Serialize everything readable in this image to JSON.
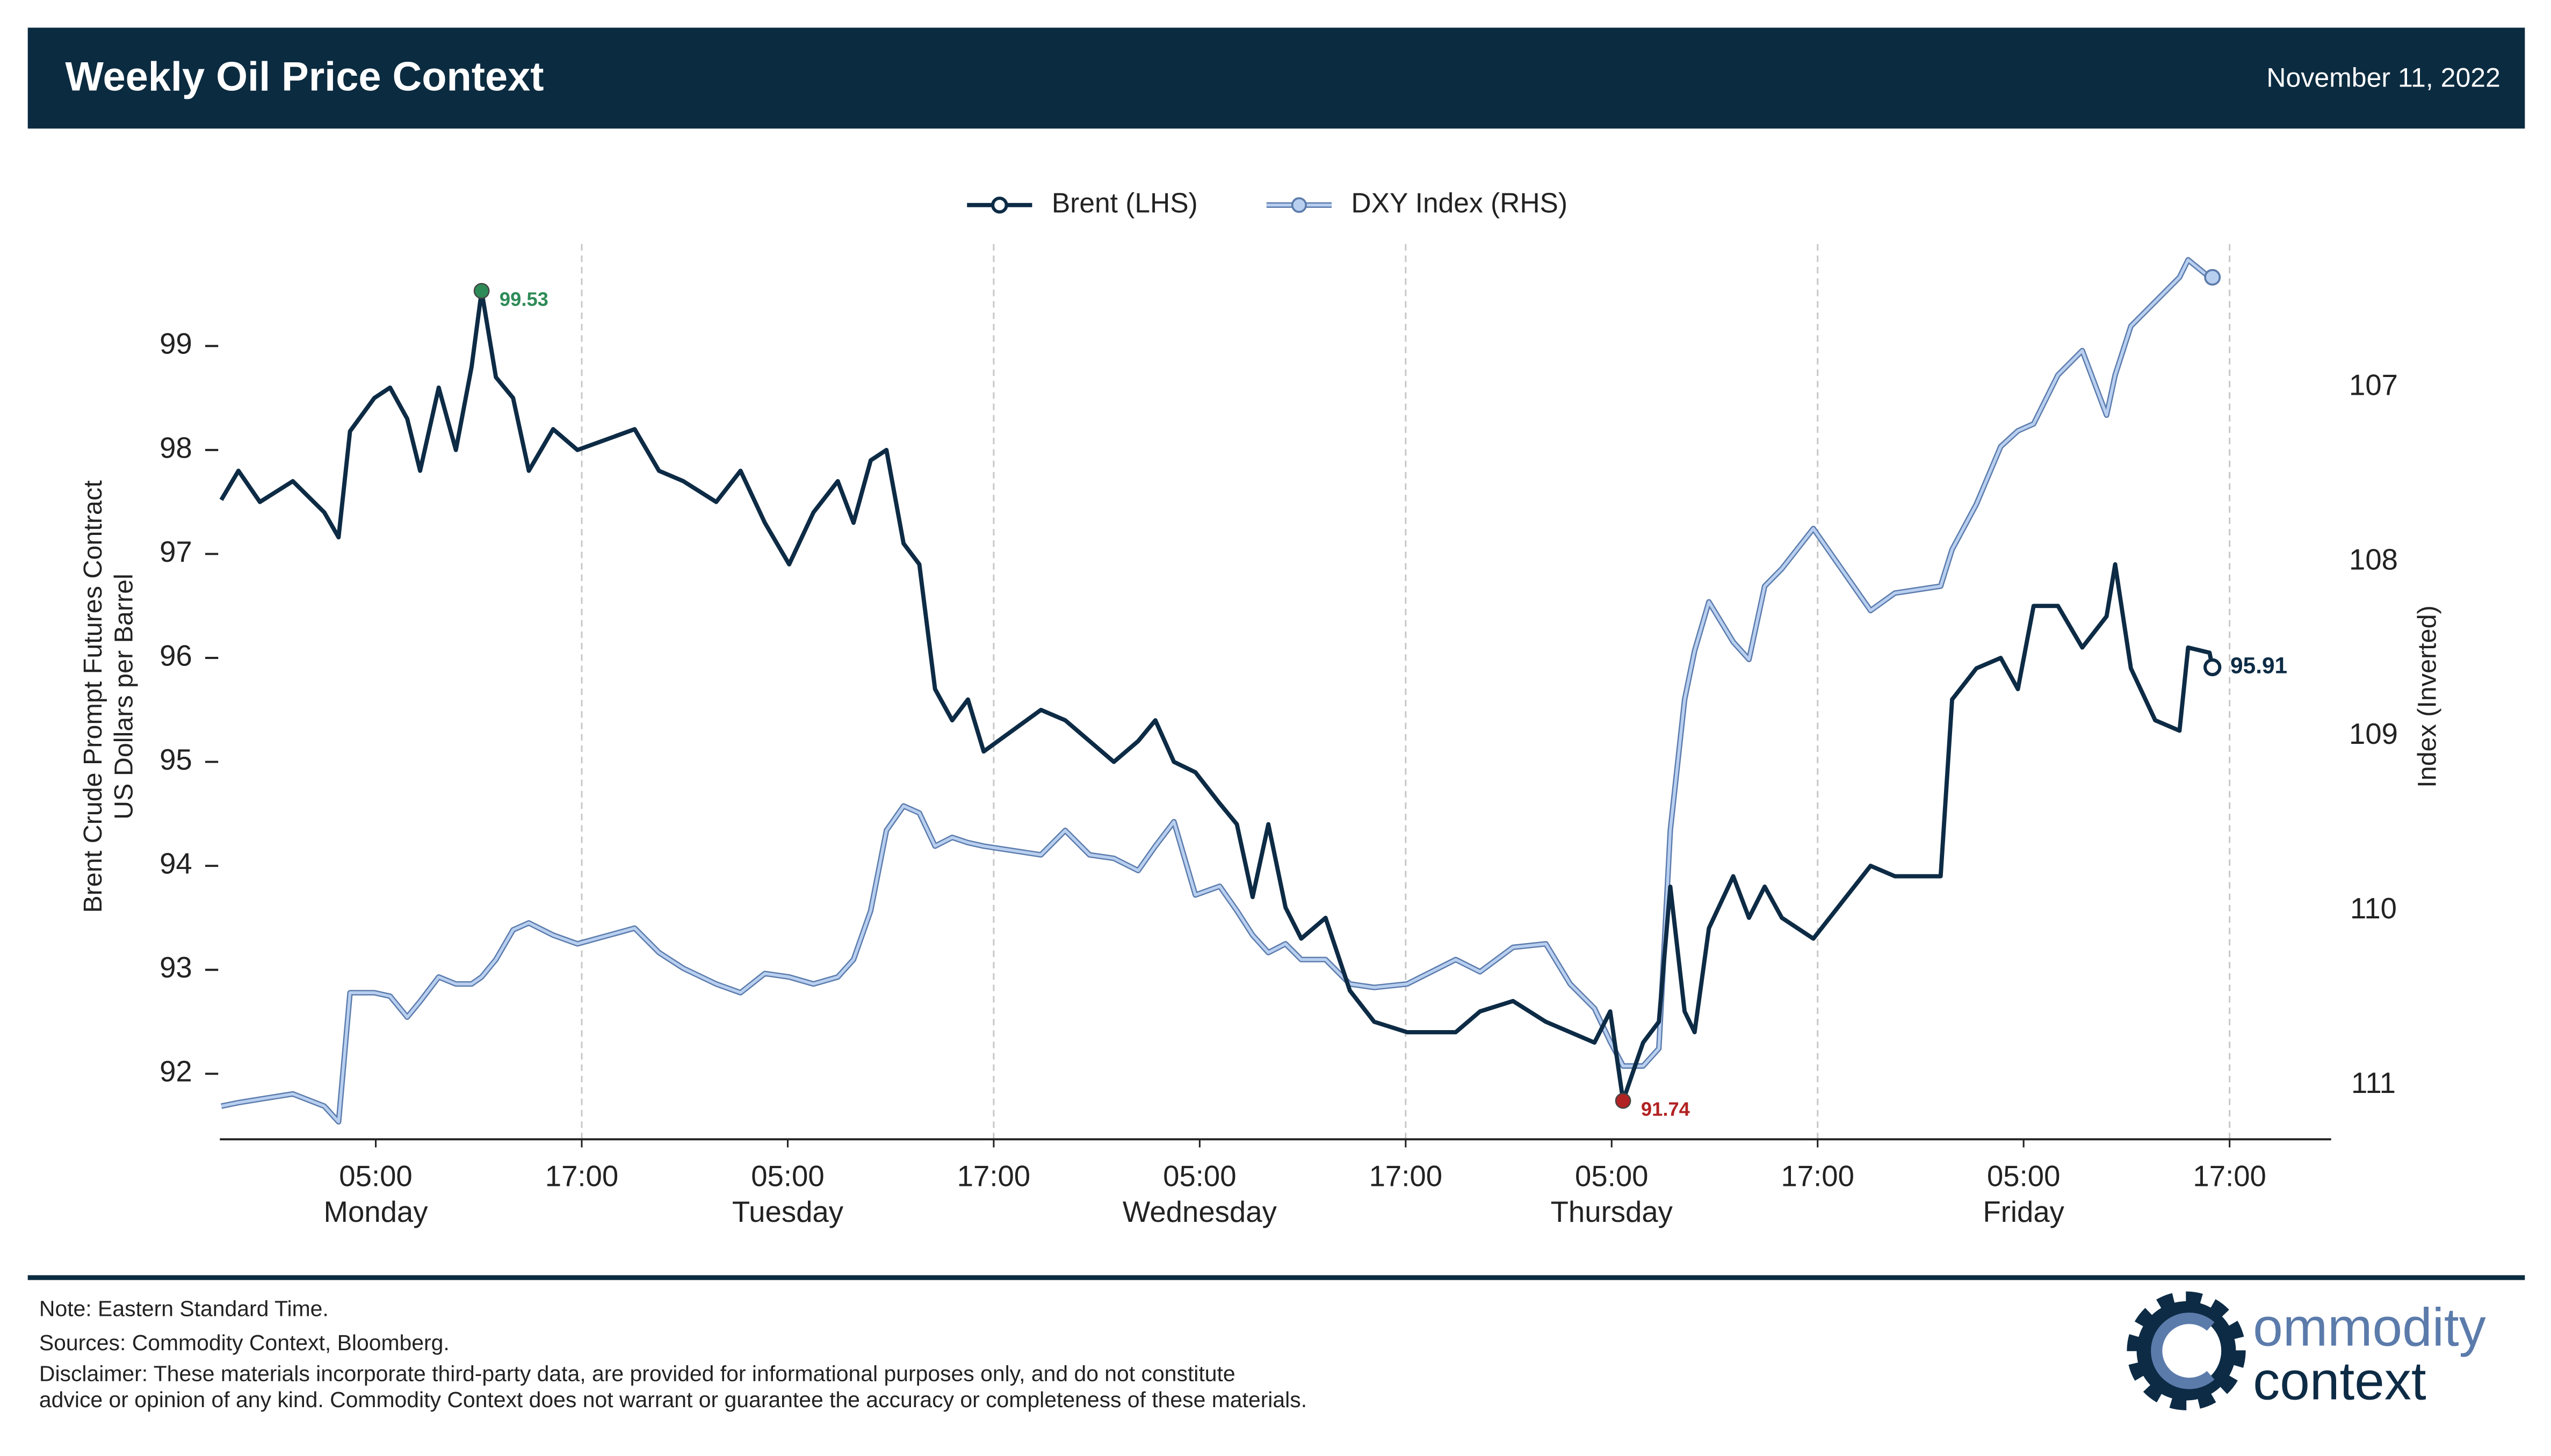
{
  "header": {
    "title": "Weekly Oil Price Context",
    "date": "November 11, 2022"
  },
  "chart_data": {
    "type": "line",
    "legend": "upper center",
    "ylabel": [
      "Brent Crude Prompt Futures Contract",
      "US Dollars per Barrel"
    ],
    "y2label": "Index (Inverted)",
    "xlim": [
      "Sunday 19:55",
      "Friday 22:55"
    ],
    "xticks": [
      {
        "value": "Monday 05:00",
        "label": "05:00"
      },
      {
        "value": "Monday 17:00",
        "label": "17:00",
        "grid": true
      },
      {
        "value": "Tuesday 05:00",
        "label": "05:00"
      },
      {
        "value": "Tuesday 17:00",
        "label": "17:00",
        "grid": true
      },
      {
        "value": "Wednesday 05:00",
        "label": "05:00"
      },
      {
        "value": "Wednesday 17:00",
        "label": "17:00",
        "grid": true
      },
      {
        "value": "Thursday 05:00",
        "label": "05:00"
      },
      {
        "value": "Thursday 17:00",
        "label": "17:00",
        "grid": true
      },
      {
        "value": "Friday 05:00",
        "label": "05:00"
      },
      {
        "value": "Friday 17:00",
        "label": "17:00",
        "grid": true
      }
    ],
    "xtick_days": [
      {
        "value": "Monday 05:00",
        "label": "Monday"
      },
      {
        "value": "Tuesday 05:00",
        "label": "Tuesday"
      },
      {
        "value": "Wednesday 05:00",
        "label": "Wednesday"
      },
      {
        "value": "Thursday 05:00",
        "label": "Thursday"
      },
      {
        "value": "Friday 05:00",
        "label": "Friday"
      }
    ],
    "ylim": [
      91.37,
      99.98
    ],
    "yticks": [
      92,
      93,
      94,
      95,
      96,
      97,
      98,
      99
    ],
    "y2lim": [
      106.18,
      111.31
    ],
    "y2ticks": [
      107,
      108,
      109,
      110,
      111
    ],
    "y2_inverted": true,
    "highlight": {
      "max_color": "#2e8b57",
      "min_color": "#b22222"
    },
    "x": [
      "Sunday 20:00",
      "Sunday 21:00",
      "Sunday 22:15",
      "Monday 00:10",
      "Monday 02:00",
      "Monday 02:50",
      "Monday 03:30",
      "Monday 04:55",
      "Monday 05:50",
      "Monday 06:50",
      "Monday 07:35",
      "Monday 08:40",
      "Monday 09:40",
      "Monday 10:35",
      "Monday 11:10",
      "Monday 12:00",
      "Monday 13:00",
      "Monday 13:55",
      "Monday 15:20",
      "Monday 16:45",
      "Monday 20:05",
      "Monday 21:30",
      "Monday 22:55",
      "Tuesday 00:50",
      "Tuesday 02:15",
      "Tuesday 03:40",
      "Tuesday 05:05",
      "Tuesday 06:30",
      "Tuesday 07:55",
      "Tuesday 08:50",
      "Tuesday 09:50",
      "Tuesday 10:45",
      "Tuesday 11:45",
      "Tuesday 12:40",
      "Tuesday 13:35",
      "Tuesday 14:35",
      "Tuesday 15:30",
      "Tuesday 16:25",
      "Tuesday 19:45",
      "Tuesday 21:10",
      "Tuesday 22:35",
      "Wednesday 00:00",
      "Wednesday 01:25",
      "Wednesday 02:25",
      "Wednesday 03:30",
      "Wednesday 04:45",
      "Wednesday 06:10",
      "Wednesday 07:10",
      "Wednesday 08:05",
      "Wednesday 09:00",
      "Wednesday 10:00",
      "Wednesday 10:55",
      "Wednesday 12:20",
      "Wednesday 13:45",
      "Wednesday 15:10",
      "Wednesday 17:05",
      "Wednesday 19:55",
      "Wednesday 21:20",
      "Wednesday 23:15",
      "Thursday 01:10",
      "Thursday 02:35",
      "Thursday 04:00",
      "Thursday 04:55",
      "Thursday 05:40",
      "Thursday 06:50",
      "Thursday 07:45",
      "Thursday 08:25",
      "Thursday 09:15",
      "Thursday 09:50",
      "Thursday 10:40",
      "Thursday 12:05",
      "Thursday 13:00",
      "Thursday 13:55",
      "Thursday 14:55",
      "Thursday 16:45",
      "Thursday 20:05",
      "Thursday 21:30",
      "Friday 00:10",
      "Friday 00:50",
      "Friday 02:15",
      "Friday 03:40",
      "Friday 04:40",
      "Friday 05:35",
      "Friday 07:00",
      "Friday 08:25",
      "Friday 09:50",
      "Friday 10:20",
      "Friday 11:15",
      "Friday 12:40",
      "Friday 14:05",
      "Friday 14:35",
      "Friday 15:50",
      "Friday 16:00"
    ],
    "series": [
      {
        "name": "Brent (LHS)",
        "color": "#0d2b45",
        "axis": "y",
        "values": [
          97.52,
          97.8,
          97.5,
          97.7,
          97.4,
          97.16,
          98.18,
          98.5,
          98.6,
          98.3,
          97.8,
          98.6,
          98.0,
          98.8,
          99.53,
          98.7,
          98.5,
          97.8,
          98.2,
          98.0,
          98.2,
          97.8,
          97.7,
          97.5,
          97.8,
          97.3,
          96.9,
          97.4,
          97.7,
          97.3,
          97.9,
          98.0,
          97.1,
          96.9,
          95.7,
          95.4,
          95.6,
          95.1,
          95.5,
          95.4,
          95.2,
          95.0,
          95.2,
          95.4,
          95.0,
          94.9,
          94.6,
          94.4,
          93.7,
          94.4,
          93.6,
          93.3,
          93.5,
          92.8,
          92.5,
          92.4,
          92.4,
          92.6,
          92.7,
          92.5,
          92.4,
          92.3,
          92.6,
          91.74,
          92.3,
          92.5,
          93.8,
          92.6,
          92.4,
          93.4,
          93.9,
          93.5,
          93.8,
          93.5,
          93.3,
          94.0,
          93.9,
          93.9,
          95.6,
          95.9,
          96.0,
          95.7,
          96.5,
          96.5,
          96.1,
          96.4,
          96.9,
          95.9,
          95.4,
          95.3,
          96.1,
          96.05,
          95.91
        ],
        "value_labels": [
          null,
          null,
          null,
          null,
          null,
          null,
          null,
          null,
          null,
          null,
          null,
          null,
          null,
          null,
          "99.53",
          null,
          null,
          null,
          null,
          null,
          null,
          null,
          null,
          null,
          null,
          null,
          null,
          null,
          null,
          null,
          null,
          null,
          null,
          null,
          null,
          null,
          null,
          null,
          null,
          null,
          null,
          null,
          null,
          null,
          null,
          null,
          null,
          null,
          null,
          null,
          null,
          null,
          null,
          null,
          null,
          null,
          null,
          null,
          null,
          null,
          null,
          null,
          null,
          "91.74",
          null,
          null,
          null,
          null,
          null,
          null,
          null,
          null,
          null,
          null,
          null,
          null,
          null,
          null,
          null,
          null,
          null,
          null,
          null,
          null,
          null,
          null,
          null,
          null,
          null,
          null,
          null,
          null,
          "95.91"
        ]
      },
      {
        "name": "DXY Index (RHS)",
        "color": "#b8cff0",
        "edge": "#5b7bab",
        "axis": "y2",
        "values": [
          111.12,
          111.1,
          111.08,
          111.05,
          111.12,
          111.21,
          110.47,
          110.47,
          110.49,
          110.61,
          110.52,
          110.38,
          110.42,
          110.42,
          110.38,
          110.28,
          110.11,
          110.07,
          110.14,
          110.19,
          110.1,
          110.24,
          110.33,
          110.42,
          110.47,
          110.36,
          110.38,
          110.42,
          110.38,
          110.28,
          110.0,
          109.54,
          109.4,
          109.44,
          109.63,
          109.58,
          109.61,
          109.63,
          109.68,
          109.54,
          109.68,
          109.7,
          109.77,
          109.63,
          109.49,
          109.91,
          109.86,
          110.0,
          110.14,
          110.24,
          110.19,
          110.28,
          110.28,
          110.42,
          110.44,
          110.42,
          110.28,
          110.35,
          110.21,
          110.19,
          110.42,
          110.56,
          110.75,
          110.89,
          110.89,
          110.79,
          109.54,
          108.79,
          108.51,
          108.23,
          108.46,
          108.56,
          108.14,
          108.04,
          107.81,
          108.28,
          108.18,
          108.14,
          107.93,
          107.67,
          107.34,
          107.25,
          107.21,
          106.93,
          106.79,
          107.16,
          106.93,
          106.65,
          106.51,
          106.37,
          106.27,
          106.37,
          106.37
        ]
      }
    ]
  },
  "footer": {
    "notes": [
      "Note: Eastern Standard Time.",
      "Sources: Commodity Context, Bloomberg.",
      "Disclaimer: These materials incorporate third-party data, are provided for informational purposes only, and do not constitute",
      "advice or opinion of any kind. Commodity Context does not warrant or guarantee the accuracy or completeness of these materials."
    ]
  },
  "logo": {
    "line1": "ommodity",
    "line2": "context"
  }
}
